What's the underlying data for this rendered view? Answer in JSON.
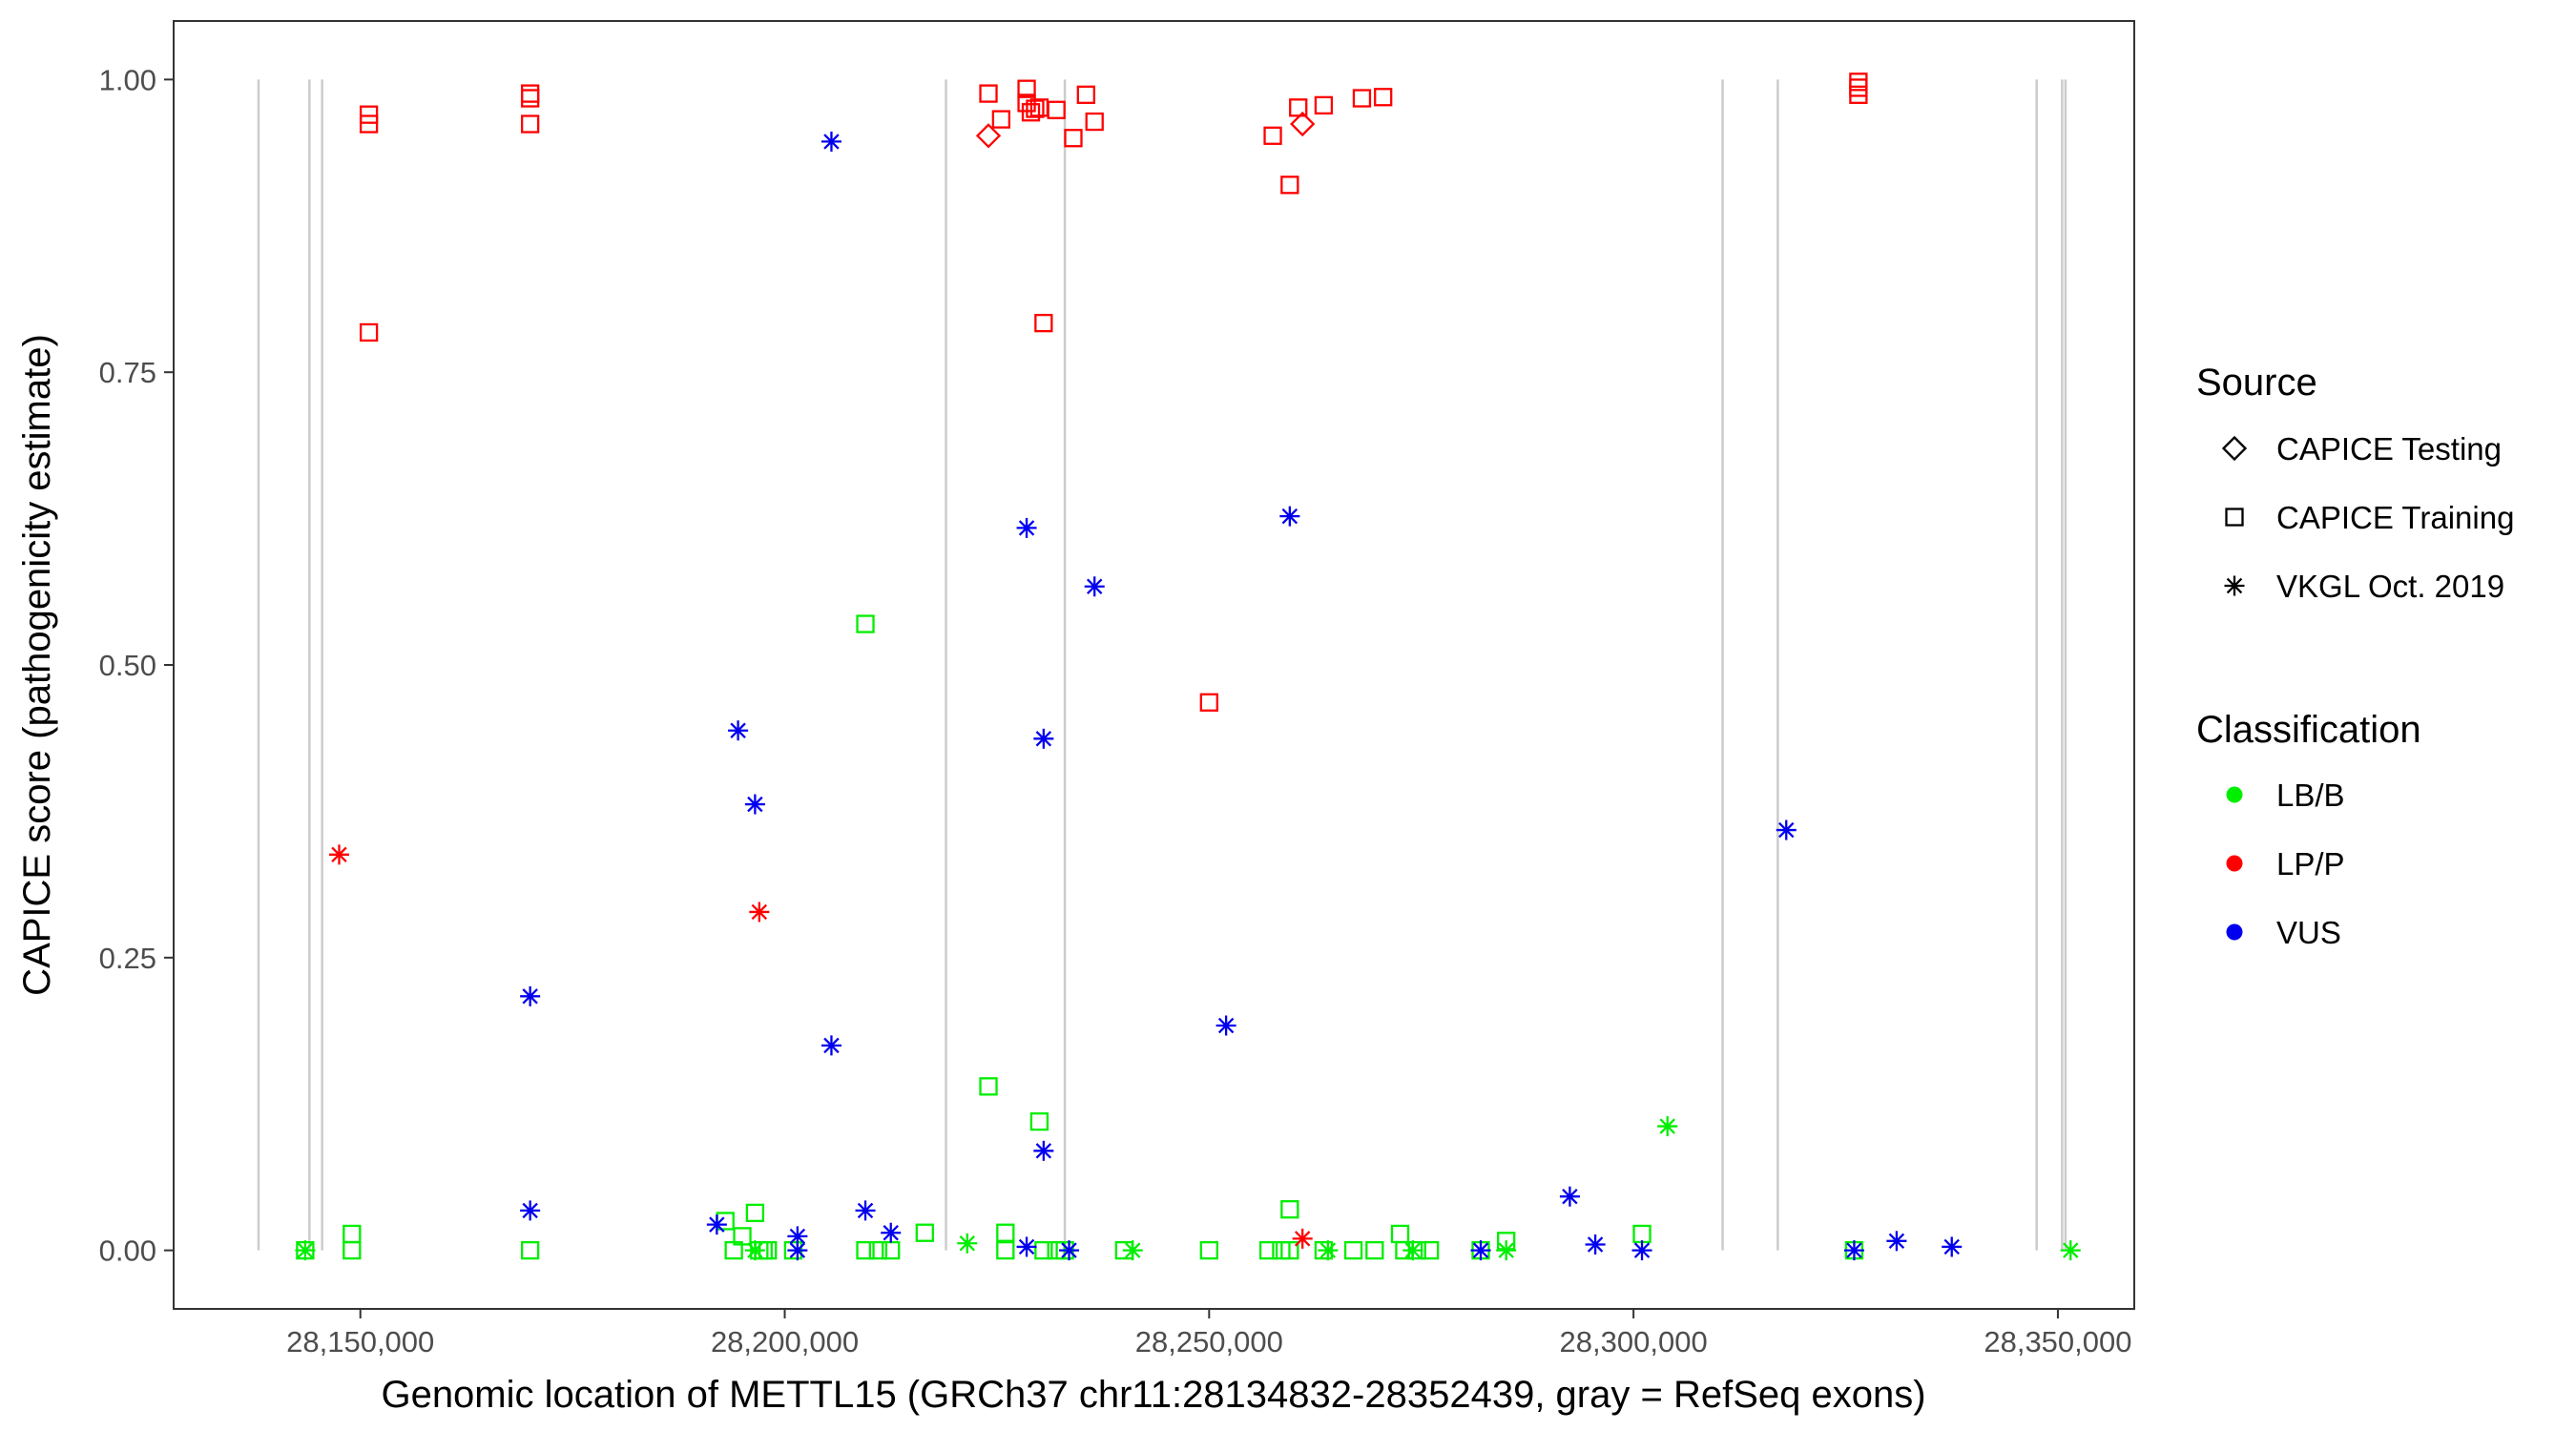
{
  "colors": {
    "LB/B": "#00ee00",
    "LP/P": "#ff0000",
    "VUS": "#0000ee",
    "exon": "#cccccc",
    "axis_text": "#4d4d4d",
    "panel_border": "#333333"
  },
  "chart_data": {
    "type": "scatter",
    "title": "",
    "xlabel": "Genomic location of METTL15 (GRCh37 chr11:28134832-28352439, gray = RefSeq exons)",
    "ylabel": "CAPICE score (pathogenicity estimate)",
    "xlim": [
      28128000,
      28359000
    ],
    "ylim": [
      -0.05,
      1.05
    ],
    "xticks": [
      28150000,
      28200000,
      28250000,
      28300000,
      28350000
    ],
    "xtick_labels": [
      "28,150,000",
      "28,200,000",
      "28,250,000",
      "28,300,000",
      "28,350,000"
    ],
    "yticks": [
      0,
      0.25,
      0.5,
      0.75,
      1
    ],
    "ytick_labels": [
      "0.00",
      "0.25",
      "0.50",
      "0.75",
      "1.00"
    ],
    "grid": false,
    "legend_position": "right",
    "exon_lines": [
      28138000,
      28144000,
      28145500,
      28219000,
      28233000,
      28310500,
      28317000,
      28347500,
      28350500,
      28350900
    ],
    "legend": {
      "source": {
        "title": "Source",
        "items": [
          {
            "label": "CAPICE Testing",
            "shape": "diamond"
          },
          {
            "label": "CAPICE Training",
            "shape": "square"
          },
          {
            "label": "VKGL Oct. 2019",
            "shape": "asterisk"
          }
        ]
      },
      "classification": {
        "title": "Classification",
        "items": [
          {
            "label": "LB/B",
            "color": "#00ee00"
          },
          {
            "label": "LP/P",
            "color": "#ff0000"
          },
          {
            "label": "VUS",
            "color": "#0000ee"
          }
        ]
      }
    },
    "series": [
      {
        "source": "CAPICE Training",
        "classification": "LP/P",
        "points": [
          [
            28151000,
            0.97
          ],
          [
            28151000,
            0.962
          ],
          [
            28151000,
            0.784
          ],
          [
            28170000,
            0.988
          ],
          [
            28170000,
            0.984
          ],
          [
            28170000,
            0.962
          ],
          [
            28224000,
            0.988
          ],
          [
            28225500,
            0.966
          ],
          [
            28228500,
            0.992
          ],
          [
            28228500,
            0.98
          ],
          [
            28229000,
            0.972
          ],
          [
            28229500,
            0.975
          ],
          [
            28230000,
            0.976
          ],
          [
            28232000,
            0.974
          ],
          [
            28234000,
            0.95
          ],
          [
            28235500,
            0.987
          ],
          [
            28236500,
            0.964
          ],
          [
            28230500,
            0.792
          ],
          [
            28250000,
            0.468
          ],
          [
            28257500,
            0.952
          ],
          [
            28259500,
            0.91
          ],
          [
            28260500,
            0.976
          ],
          [
            28263500,
            0.978
          ],
          [
            28268000,
            0.984
          ],
          [
            28270500,
            0.985
          ],
          [
            28326500,
            0.998
          ],
          [
            28326500,
            0.993
          ],
          [
            28326500,
            0.987
          ]
        ]
      },
      {
        "source": "CAPICE Testing",
        "classification": "LP/P",
        "points": [
          [
            28224000,
            0.952
          ],
          [
            28261000,
            0.962
          ]
        ]
      },
      {
        "source": "CAPICE Training",
        "classification": "LB/B",
        "points": [
          [
            28143500,
            0.0
          ],
          [
            28149000,
            0.014
          ],
          [
            28149000,
            0.0
          ],
          [
            28170000,
            0.0
          ],
          [
            28193000,
            0.025
          ],
          [
            28194000,
            0.0
          ],
          [
            28195000,
            0.012
          ],
          [
            28196500,
            0.032
          ],
          [
            28197000,
            0.0
          ],
          [
            28197500,
            0.0
          ],
          [
            28198000,
            0.0
          ],
          [
            28201000,
            0.0
          ],
          [
            28209500,
            0.535
          ],
          [
            28209500,
            0.0
          ],
          [
            28211000,
            0.0
          ],
          [
            28212500,
            0.0
          ],
          [
            28216500,
            0.015
          ],
          [
            28224000,
            0.14
          ],
          [
            28226000,
            0.015
          ],
          [
            28226000,
            0.0
          ],
          [
            28230000,
            0.11
          ],
          [
            28230500,
            0.0
          ],
          [
            28232000,
            0.0
          ],
          [
            28233000,
            0.0
          ],
          [
            28240000,
            0.0
          ],
          [
            28250000,
            0.0
          ],
          [
            28257000,
            0.0
          ],
          [
            28258500,
            0.0
          ],
          [
            28259500,
            0.035
          ],
          [
            28259500,
            0.0
          ],
          [
            28263500,
            0.0
          ],
          [
            28267000,
            0.0
          ],
          [
            28269500,
            0.0
          ],
          [
            28272500,
            0.014
          ],
          [
            28273000,
            0.0
          ],
          [
            28274500,
            0.0
          ],
          [
            28276000,
            0.0
          ],
          [
            28282000,
            0.0
          ],
          [
            28285000,
            0.008
          ],
          [
            28301000,
            0.014
          ],
          [
            28326000,
            0.0
          ]
        ]
      },
      {
        "source": "VKGL Oct. 2019",
        "classification": "LB/B",
        "points": [
          [
            28143500,
            0.0
          ],
          [
            28196500,
            0.0
          ],
          [
            28221500,
            0.006
          ],
          [
            28241000,
            0.0
          ],
          [
            28264000,
            0.0
          ],
          [
            28274000,
            0.0
          ],
          [
            28285000,
            0.0
          ],
          [
            28304000,
            0.106
          ],
          [
            28351500,
            0.0
          ]
        ]
      },
      {
        "source": "VKGL Oct. 2019",
        "classification": "LP/P",
        "points": [
          [
            28147500,
            0.338
          ],
          [
            28197000,
            0.289
          ],
          [
            28261000,
            0.01
          ]
        ]
      },
      {
        "source": "VKGL Oct. 2019",
        "classification": "VUS",
        "points": [
          [
            28170000,
            0.217
          ],
          [
            28170000,
            0.034
          ],
          [
            28192000,
            0.022
          ],
          [
            28194500,
            0.444
          ],
          [
            28196500,
            0.381
          ],
          [
            28201500,
            0.012
          ],
          [
            28201500,
            0.0
          ],
          [
            28205500,
            0.947
          ],
          [
            28205500,
            0.175
          ],
          [
            28209500,
            0.034
          ],
          [
            28212500,
            0.015
          ],
          [
            28228500,
            0.617
          ],
          [
            28228500,
            0.003
          ],
          [
            28230500,
            0.437
          ],
          [
            28230500,
            0.085
          ],
          [
            28233500,
            0.0
          ],
          [
            28236500,
            0.567
          ],
          [
            28252000,
            0.192
          ],
          [
            28259500,
            0.627
          ],
          [
            28282000,
            0.0
          ],
          [
            28292500,
            0.046
          ],
          [
            28295500,
            0.005
          ],
          [
            28301000,
            0.0
          ],
          [
            28318000,
            0.359
          ],
          [
            28326000,
            0.0
          ],
          [
            28331000,
            0.008
          ],
          [
            28337500,
            0.003
          ]
        ]
      }
    ]
  }
}
